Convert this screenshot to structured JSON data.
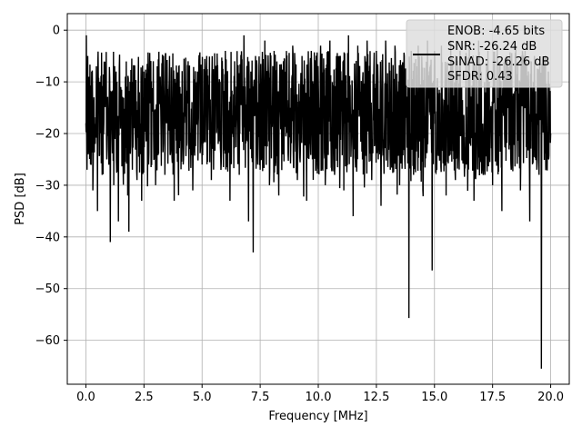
{
  "chart_data": {
    "type": "line",
    "title": "",
    "xlabel": "Frequency [MHz]",
    "ylabel": "PSD [dB]",
    "xlim": [
      -0.8,
      20.8
    ],
    "ylim": [
      -68.5,
      3.2
    ],
    "grid": true,
    "x_ticks": [
      0.0,
      2.5,
      5.0,
      7.5,
      10.0,
      12.5,
      15.0,
      17.5,
      20.0
    ],
    "x_tick_labels": [
      "0.0",
      "2.5",
      "5.0",
      "7.5",
      "10.0",
      "12.5",
      "15.0",
      "17.5",
      "20.0"
    ],
    "y_ticks": [
      0,
      -10,
      -20,
      -30,
      -40,
      -50,
      -60
    ],
    "y_tick_labels": [
      "0",
      "−10",
      "−20",
      "−30",
      "−40",
      "−50",
      "−60"
    ],
    "legend": {
      "placement": "top-right",
      "entries": [
        "ENOB: -4.65 bits",
        "SNR: -26.24 dB",
        "SINAD: -26.26 dB",
        "SFDR: 0.43"
      ]
    },
    "series": [
      {
        "color": "#000000",
        "x": [
          0.0,
          0.02,
          0.05,
          0.08,
          0.1,
          0.15,
          0.2,
          0.25,
          0.3,
          0.35,
          0.4,
          0.45,
          0.5,
          0.6,
          0.7,
          0.8,
          0.9,
          1.0,
          1.05,
          1.1,
          1.2,
          1.3,
          1.4,
          1.5,
          1.6,
          1.7,
          1.8,
          1.85,
          1.9,
          2.0,
          2.1,
          2.2,
          2.3,
          2.4,
          2.5,
          2.7,
          2.9,
          3.0,
          3.2,
          3.4,
          3.6,
          3.8,
          4.0,
          4.2,
          4.4,
          4.6,
          4.8,
          5.0,
          5.2,
          5.4,
          5.6,
          5.8,
          6.0,
          6.2,
          6.4,
          6.6,
          6.8,
          7.0,
          7.1,
          7.2,
          7.3,
          7.5,
          7.7,
          7.9,
          8.1,
          8.3,
          8.5,
          8.7,
          8.9,
          9.1,
          9.3,
          9.5,
          9.7,
          9.9,
          10.1,
          10.3,
          10.5,
          10.7,
          10.9,
          11.1,
          11.3,
          11.5,
          11.7,
          11.9,
          12.1,
          12.3,
          12.5,
          12.7,
          12.9,
          13.1,
          13.3,
          13.5,
          13.7,
          13.9,
          14.0,
          14.1,
          14.3,
          14.5,
          14.7,
          14.9,
          15.0,
          15.1,
          15.3,
          15.5,
          15.7,
          15.9,
          16.1,
          16.3,
          16.5,
          16.7,
          16.9,
          17.1,
          17.3,
          17.5,
          17.7,
          17.9,
          18.1,
          18.3,
          18.5,
          18.7,
          18.9,
          19.1,
          19.3,
          19.5,
          19.6,
          19.7,
          19.8,
          19.9,
          20.0
        ],
        "y": [
          -18.0,
          -1.0,
          -27.0,
          -5.0,
          -24.0,
          -11.0,
          -26.0,
          -8.0,
          -31.0,
          -13.0,
          -22.0,
          -7.0,
          -35.0,
          -10.0,
          -28.0,
          -9.0,
          -25.0,
          -15.0,
          -41.0,
          -12.0,
          -30.0,
          -8.0,
          -37.0,
          -11.0,
          -26.0,
          -9.0,
          -32.0,
          -39.0,
          -10.0,
          -27.0,
          -7.0,
          -29.0,
          -12.0,
          -33.0,
          -8.0,
          -26.0,
          -6.0,
          -30.0,
          -9.0,
          -28.0,
          -5.0,
          -33.0,
          -7.0,
          -25.0,
          -6.0,
          -31.0,
          -8.0,
          -26.0,
          -5.0,
          -29.0,
          -7.0,
          -24.0,
          -4.0,
          -33.0,
          -6.0,
          -28.0,
          -1.0,
          -37.0,
          -8.0,
          -43.0,
          -5.0,
          -27.0,
          -2.0,
          -30.0,
          -4.0,
          -32.0,
          -6.0,
          -24.0,
          -3.0,
          -29.0,
          -5.0,
          -33.0,
          -4.0,
          -26.0,
          -3.0,
          -30.0,
          -2.0,
          -28.0,
          -5.0,
          -31.0,
          -1.0,
          -36.0,
          -3.0,
          -25.0,
          -2.0,
          -29.0,
          -4.0,
          -34.0,
          -2.0,
          -27.0,
          -3.0,
          -30.0,
          -5.0,
          -55.7,
          -4.0,
          -28.0,
          -3.0,
          -31.0,
          -2.0,
          -46.5,
          -4.0,
          -27.0,
          -3.0,
          -32.0,
          -2.0,
          -29.0,
          -4.0,
          -26.0,
          -3.0,
          -33.0,
          -2.0,
          -28.0,
          -4.0,
          -30.0,
          -3.0,
          -35.0,
          -5.0,
          -27.0,
          -3.0,
          -31.0,
          -4.0,
          -37.0,
          -5.0,
          -28.0,
          -65.5,
          -6.0,
          -25.0,
          -8.0,
          -20.0
        ]
      }
    ]
  }
}
